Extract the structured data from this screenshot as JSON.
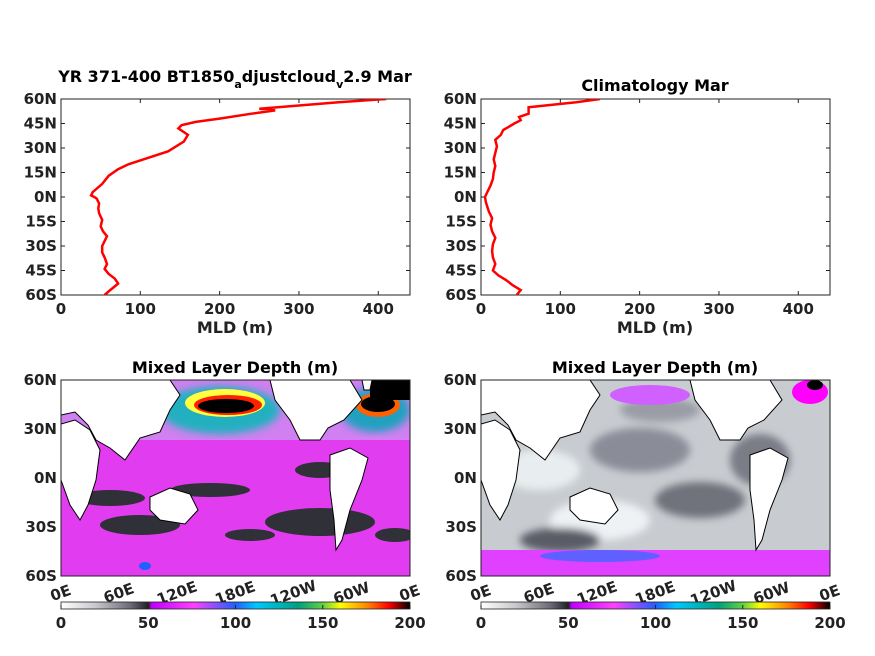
{
  "chart_data": [
    {
      "type": "line",
      "title_parts": {
        "pre": "YR 371-400 BT1850",
        "sub1": "a",
        "mid": "djustcloud",
        "sub2": "v",
        "post": "2.9 Mar"
      },
      "xlabel": "MLD (m)",
      "xlim": [
        0,
        440
      ],
      "ylim": [
        -60,
        60
      ],
      "xticks": [
        "0",
        "100",
        "200",
        "300",
        "400"
      ],
      "yticks": [
        "60N",
        "45N",
        "30N",
        "15N",
        "0N",
        "15S",
        "30S",
        "45S",
        "60S"
      ],
      "line_color": "#ff0000",
      "series": [
        {
          "x": [
            55,
            62,
            72,
            68,
            60,
            55,
            58,
            55,
            52,
            52,
            55,
            58,
            53,
            50,
            52,
            48,
            47,
            48,
            45,
            42,
            38,
            40,
            52,
            60,
            72,
            85,
            110,
            135,
            145,
            155,
            160,
            148,
            152,
            170,
            200,
            240,
            270,
            250,
            300,
            350,
            410
          ],
          "y": [
            -60,
            -57,
            -53,
            -50,
            -47,
            -44,
            -41,
            -37,
            -34,
            -30,
            -27,
            -24,
            -21,
            -18,
            -14,
            -10,
            -7,
            -4,
            -1,
            0,
            1,
            3,
            8,
            13,
            17,
            20,
            24,
            28,
            31,
            34,
            38,
            42,
            44,
            46,
            48,
            51,
            53,
            54,
            56,
            58,
            60
          ]
        }
      ]
    },
    {
      "type": "line",
      "title": "Climatology Mar",
      "xlabel": "MLD (m)",
      "xlim": [
        0,
        440
      ],
      "ylim": [
        -60,
        60
      ],
      "xticks": [
        "0",
        "100",
        "200",
        "300",
        "400"
      ],
      "yticks": [
        "60N",
        "45N",
        "30N",
        "15N",
        "0N",
        "15S",
        "30S",
        "45S",
        "60S"
      ],
      "line_color": "#ff0000",
      "series": [
        {
          "x": [
            45,
            50,
            40,
            32,
            22,
            15,
            18,
            15,
            14,
            15,
            18,
            14,
            12,
            14,
            10,
            8,
            6,
            5,
            8,
            12,
            15,
            16,
            18,
            16,
            18,
            20,
            18,
            25,
            28,
            35,
            42,
            50,
            48,
            60,
            60,
            120,
            150
          ],
          "y": [
            -60,
            -57,
            -54,
            -51,
            -48,
            -45,
            -41,
            -37,
            -33,
            -29,
            -25,
            -21,
            -17,
            -13,
            -9,
            -6,
            -3,
            0,
            3,
            7,
            11,
            15,
            19,
            23,
            27,
            31,
            35,
            38,
            41,
            43,
            45,
            47,
            49,
            51,
            55,
            58,
            60
          ]
        }
      ]
    },
    {
      "type": "heatmap",
      "title": "Mixed Layer Depth (m)",
      "yticks": [
        "60N",
        "30N",
        "0N",
        "30S",
        "60S"
      ],
      "xticks": [
        "0E",
        "60E",
        "120E",
        "180E",
        "120W",
        "60W",
        "0E"
      ],
      "colorbar": {
        "range": [
          0,
          200
        ],
        "ticks": [
          "0",
          "50",
          "100",
          "150",
          "200"
        ]
      }
    },
    {
      "type": "heatmap",
      "title": "Mixed Layer Depth (m)",
      "yticks": [
        "60N",
        "30N",
        "0N",
        "30S",
        "60S"
      ],
      "xticks": [
        "0E",
        "60E",
        "120E",
        "180E",
        "120W",
        "60W",
        "0E"
      ],
      "colorbar": {
        "range": [
          0,
          200
        ],
        "ticks": [
          "0",
          "50",
          "100",
          "150",
          "200"
        ]
      }
    }
  ],
  "colors": {
    "colormap": [
      "#ffffff",
      "#d8d8dc",
      "#a8a8b0",
      "#6a6a74",
      "#303036",
      "#c000ff",
      "#ff00ff",
      "#e060ff",
      "#2040ff",
      "#00c8ff",
      "#00a890",
      "#40d060",
      "#ffff00",
      "#ff8000",
      "#ff0000",
      "#800000",
      "#000000"
    ]
  }
}
